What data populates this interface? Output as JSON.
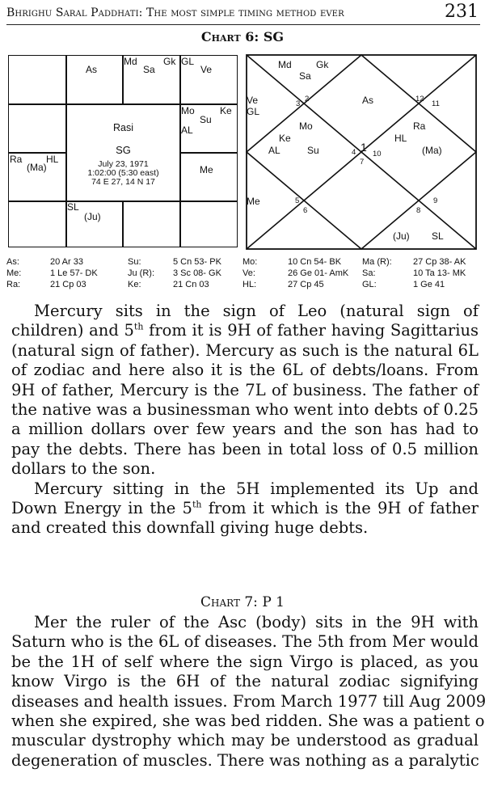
{
  "header": {
    "title": "Bhrighu Saral Paddhati: The most simple timing method ever",
    "page_number": "231"
  },
  "chart6": {
    "title": "Chart 6: SG",
    "rasi": {
      "center": {
        "name": "Rasi",
        "label": "SG",
        "date": "July 23, 1971",
        "time": "1:02:00 (5:30 east)",
        "place": "74 E 27, 14 N 17"
      },
      "cells": {
        "r0c1": [
          "As"
        ],
        "r0c2": [
          "Md",
          "Gk",
          "Sa"
        ],
        "r0c3": [
          "GL",
          "Ve"
        ],
        "r1c3": [
          "Mo",
          "Ke",
          "Su",
          "AL"
        ],
        "r2c0": [
          "Ra",
          "HL",
          "(Ma)"
        ],
        "r2c3": [
          "Me"
        ],
        "r3c1": [
          "SL",
          "(Ju)"
        ]
      }
    },
    "north": {
      "planets": {
        "h12_top": [
          "Md",
          "Gk",
          "Sa"
        ],
        "left_top": [
          "Ve",
          "GL"
        ],
        "h1": [
          "As"
        ],
        "h2": [
          "Mo",
          "Ke",
          "AL",
          "Su"
        ],
        "h10": [
          "Ra",
          "HL",
          "(Ma)"
        ],
        "left_bottom": [
          "Me"
        ],
        "h7bottom": [
          "(Ju)",
          "SL"
        ]
      },
      "house_numbers": [
        "1",
        "2",
        "3",
        "4",
        "5",
        "6",
        "7",
        "8",
        "9",
        "10",
        "11",
        "12"
      ]
    },
    "positions": [
      [
        {
          "k": "As:",
          "v": "20 Ar 33"
        },
        {
          "k": "Su:",
          "v": "5 Cn 53- PK"
        },
        {
          "k": "Mo:",
          "v": "10 Cn 54- BK"
        },
        {
          "k": "Ma (R):",
          "v": "27 Cp 38- AK"
        }
      ],
      [
        {
          "k": "Me:",
          "v": "1 Le 57- DK"
        },
        {
          "k": "Ju (R):",
          "v": "3 Sc 08- GK"
        },
        {
          "k": "Ve:",
          "v": "26 Ge 01- AmK"
        },
        {
          "k": "Sa:",
          "v": "10 Ta 13- MK"
        }
      ],
      [
        {
          "k": "Ra:",
          "v": "21 Cp 03"
        },
        {
          "k": "Ke:",
          "v": "21 Cn 03"
        },
        {
          "k": "HL:",
          "v": "27 Cp 45"
        },
        {
          "k": "GL:",
          "v": "1 Ge 41"
        }
      ]
    ]
  },
  "body1": [
    {
      "ind": true,
      "seg": [
        {
          "t": "Mercury sits in the sign of Leo (natural sign of"
        }
      ]
    },
    {
      "seg": [
        {
          "t": "children) and 5"
        },
        {
          "sup": "th"
        },
        {
          "t": " from it is 9H of father having Sagittarius"
        }
      ]
    },
    {
      "seg": [
        {
          "t": "(natural sign of father). Mercury as such is the natural 6L"
        }
      ]
    },
    {
      "seg": [
        {
          "t": "of zodiac and here also it is the 6L of debts/loans. From"
        }
      ]
    },
    {
      "seg": [
        {
          "t": "9H of father, Mercury is the 7L of business. The father of"
        }
      ]
    },
    {
      "seg": [
        {
          "t": "the native was a businessman who went into debts of 0.25"
        }
      ]
    },
    {
      "seg": [
        {
          "t": "a million dollars over few years and the son has had to"
        }
      ]
    },
    {
      "seg": [
        {
          "t": "pay the debts. There has been in total loss of 0.5 million"
        }
      ]
    },
    {
      "last": true,
      "seg": [
        {
          "t": "dollars to the son."
        }
      ]
    },
    {
      "ind": true,
      "seg": [
        {
          "t": "Mercury sitting in the 5H implemented its Up and"
        }
      ]
    },
    {
      "seg": [
        {
          "t": "Down Energy in the 5"
        },
        {
          "sup": "th"
        },
        {
          "t": " from it which is the 9H of father"
        }
      ]
    },
    {
      "last": true,
      "seg": [
        {
          "t": "and created this downfall giving huge debts."
        }
      ]
    }
  ],
  "chart7": {
    "title": "Chart 7: P 1"
  },
  "body2": [
    {
      "ind": true,
      "seg": [
        {
          "t": "Mer the ruler of the Asc (body) sits in the 9H with"
        }
      ]
    },
    {
      "seg": [
        {
          "t": "Saturn who is the 6L of diseases. The 5th from Mer would"
        }
      ]
    },
    {
      "seg": [
        {
          "t": "be the 1H of self where the sign Virgo is placed, as you"
        }
      ]
    },
    {
      "seg": [
        {
          "t": "know Virgo is the 6H of the natural zodiac signifying"
        }
      ]
    },
    {
      "seg": [
        {
          "t": "diseases and health issues. From March 1977 till Aug 2009"
        }
      ]
    },
    {
      "seg": [
        {
          "t": "when she expired, she was bed ridden. She was a patient of"
        }
      ]
    },
    {
      "seg": [
        {
          "t": "muscular dystrophy which may be understood as gradual"
        }
      ]
    },
    {
      "seg": [
        {
          "t": "degeneration of muscles. There was nothing as a paralytic"
        }
      ]
    }
  ]
}
